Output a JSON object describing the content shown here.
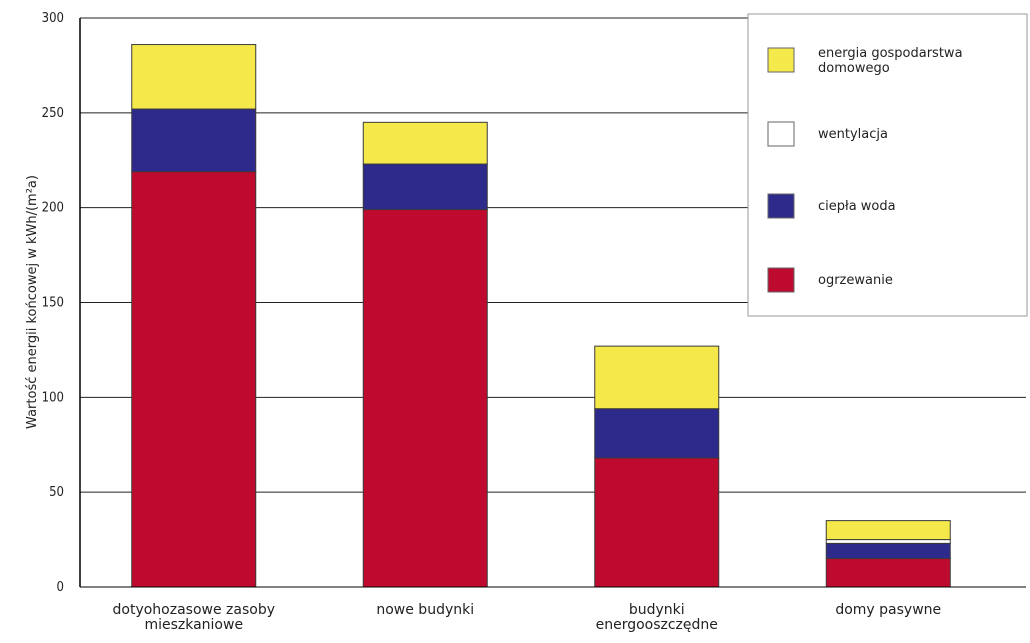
{
  "chart_data": {
    "type": "bar",
    "stacked": true,
    "ylabel": "Wartość energii końcowej w kWh/(m²a)",
    "ylim": [
      0,
      300
    ],
    "y_ticks": [
      0,
      50,
      100,
      150,
      200,
      250,
      300
    ],
    "grid": true,
    "legend_position": "top-right",
    "categories": [
      [
        "dotyohozasowe zasoby",
        "mieszkaniowe"
      ],
      [
        "nowe budynki"
      ],
      [
        "budynki",
        "energooszczędne"
      ],
      [
        "domy pasywne"
      ]
    ],
    "series": [
      {
        "name": "ogrzewanie",
        "color": "#bf0a30",
        "values": [
          219,
          199,
          68,
          15
        ]
      },
      {
        "name": "ciepła woda",
        "color": "#2e2a8c",
        "values": [
          33,
          24,
          26,
          8
        ]
      },
      {
        "name": "wentylacja",
        "color": "#ffffff",
        "values": [
          0,
          0,
          0,
          2
        ]
      },
      {
        "name": "energia gospodarstwa domowego",
        "color": "#f4e84a",
        "values": [
          34,
          22,
          33,
          10
        ]
      }
    ],
    "legend": [
      {
        "lines": [
          "energia gospodarstwa",
          "domowego"
        ],
        "color": "#f4e84a"
      },
      {
        "lines": [
          "wentylacja"
        ],
        "color": "#ffffff"
      },
      {
        "lines": [
          "ciepła woda"
        ],
        "color": "#2e2a8c"
      },
      {
        "lines": [
          "ogrzewanie"
        ],
        "color": "#bf0a30"
      }
    ]
  }
}
